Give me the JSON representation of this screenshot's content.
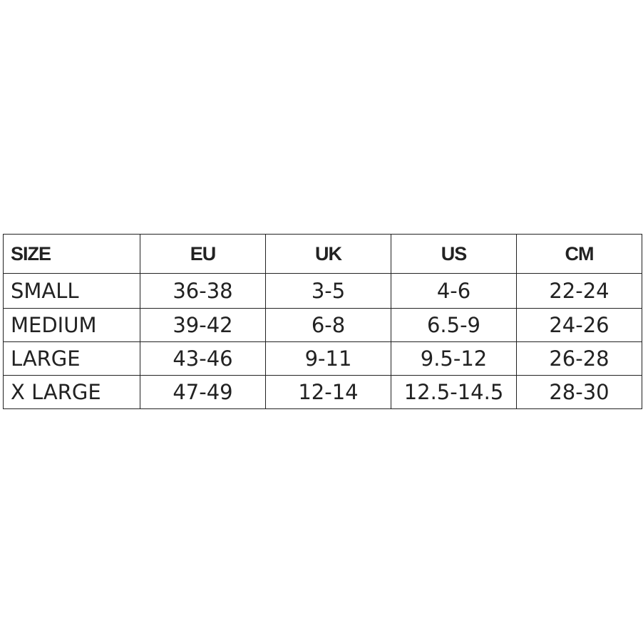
{
  "table": {
    "header": [
      "SIZE",
      "EU",
      "UK",
      "US",
      "CM"
    ],
    "rows": [
      [
        "SMALL",
        "36-38",
        "3-5",
        "4-6",
        "22-24"
      ],
      [
        "MEDIUM",
        "39-42",
        "6-8",
        "6.5-9",
        "24-26"
      ],
      [
        "LARGE",
        "43-46",
        "9-11",
        "9.5-12",
        "26-28"
      ],
      [
        "X LARGE",
        "47-49",
        "12-14",
        "12.5-14.5",
        "28-30"
      ]
    ]
  }
}
